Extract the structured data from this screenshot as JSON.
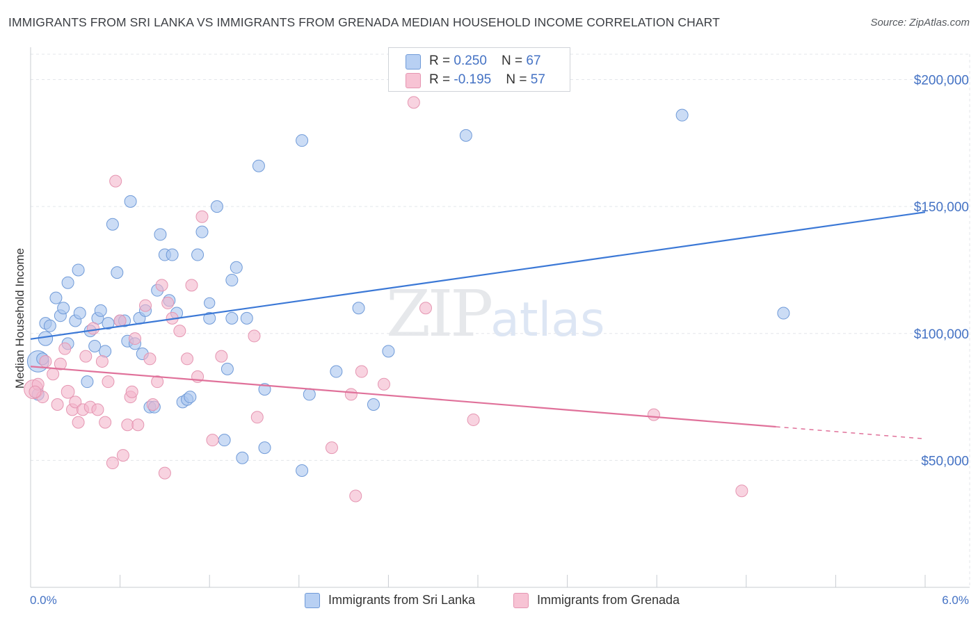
{
  "title": "IMMIGRANTS FROM SRI LANKA VS IMMIGRANTS FROM GRENADA MEDIAN HOUSEHOLD INCOME CORRELATION CHART",
  "source": "Source: ZipAtlas.com",
  "watermark": {
    "zip": "ZIP",
    "atlas": "atlas"
  },
  "colors": {
    "blue": "#4472c4",
    "blue_fill": "#a9c4ee",
    "pink": "#e0719a",
    "pink_fill": "#f4b6cb",
    "grid": "#e3e6ea"
  },
  "legend": {
    "rows": [
      {
        "r_label": "R = ",
        "r_value": "0.250",
        "n_label": "N = ",
        "n_value": "67"
      },
      {
        "r_label": "R = ",
        "r_value": "-0.195",
        "n_label": "N = ",
        "n_value": "57"
      }
    ]
  },
  "chart_data": {
    "type": "scatter",
    "title": "IMMIGRANTS FROM SRI LANKA VS IMMIGRANTS FROM GRENADA MEDIAN HOUSEHOLD INCOME CORRELATION CHART",
    "xlabel": "",
    "ylabel": "Median Household Income",
    "xlim": [
      0,
      6
    ],
    "ylim": [
      0,
      210000
    ],
    "x_tick_labels": [
      "0.0%",
      "6.0%"
    ],
    "y_ticks": [
      50000,
      100000,
      150000,
      200000
    ],
    "y_tick_labels": [
      "$50,000",
      "$100,000",
      "$150,000",
      "$200,000"
    ],
    "grid": true,
    "series": [
      {
        "name": "Immigrants from Sri Lanka",
        "color": "blue",
        "r": 0.25,
        "n": 67,
        "trend": {
          "x0": 0.0,
          "y0": 97800,
          "x1": 6.0,
          "y1": 147800,
          "dash_from": null
        },
        "points": [
          [
            0.05,
            89000,
            1.8
          ],
          [
            0.1,
            98000,
            1.2
          ],
          [
            0.1,
            104000,
            1
          ],
          [
            0.13,
            103000,
            1
          ],
          [
            0.17,
            114000,
            1
          ],
          [
            0.2,
            107000,
            1
          ],
          [
            0.22,
            110000,
            1
          ],
          [
            0.25,
            120000,
            1
          ],
          [
            0.25,
            96000,
            1
          ],
          [
            0.3,
            105000,
            1
          ],
          [
            0.32,
            125000,
            1
          ],
          [
            0.33,
            108000,
            1
          ],
          [
            0.38,
            81000,
            1
          ],
          [
            0.4,
            101000,
            1
          ],
          [
            0.43,
            95000,
            1
          ],
          [
            0.45,
            106000,
            1
          ],
          [
            0.47,
            109000,
            1
          ],
          [
            0.5,
            93000,
            1
          ],
          [
            0.52,
            104000,
            1
          ],
          [
            0.55,
            143000,
            1
          ],
          [
            0.58,
            124000,
            1
          ],
          [
            0.6,
            105000,
            1
          ],
          [
            0.63,
            105000,
            1
          ],
          [
            0.65,
            97000,
            1
          ],
          [
            0.67,
            152000,
            1
          ],
          [
            0.7,
            96000,
            1
          ],
          [
            0.73,
            106000,
            1
          ],
          [
            0.75,
            92000,
            1
          ],
          [
            0.77,
            109000,
            1
          ],
          [
            0.8,
            71000,
            1
          ],
          [
            0.83,
            71000,
            1
          ],
          [
            0.85,
            117000,
            1
          ],
          [
            0.87,
            139000,
            1
          ],
          [
            0.9,
            131000,
            1
          ],
          [
            0.93,
            113000,
            1
          ],
          [
            0.95,
            131000,
            1
          ],
          [
            0.98,
            108000,
            1
          ],
          [
            1.02,
            73000,
            1
          ],
          [
            1.05,
            74000,
            1
          ],
          [
            1.07,
            75000,
            1
          ],
          [
            1.12,
            131000,
            1
          ],
          [
            1.15,
            140000,
            1
          ],
          [
            1.2,
            106000,
            1
          ],
          [
            1.25,
            150000,
            1
          ],
          [
            1.3,
            58000,
            1
          ],
          [
            1.32,
            86000,
            1
          ],
          [
            1.35,
            121000,
            1
          ],
          [
            1.35,
            106000,
            1
          ],
          [
            1.38,
            126000,
            1
          ],
          [
            1.42,
            51000,
            1
          ],
          [
            1.45,
            106000,
            1
          ],
          [
            1.53,
            166000,
            1
          ],
          [
            1.57,
            55000,
            1
          ],
          [
            1.57,
            78000,
            1
          ],
          [
            1.82,
            176000,
            1
          ],
          [
            1.82,
            46000,
            1
          ],
          [
            1.87,
            76000,
            1
          ],
          [
            2.05,
            85000,
            1
          ],
          [
            2.2,
            110000,
            1
          ],
          [
            2.3,
            72000,
            1
          ],
          [
            2.4,
            93000,
            1
          ],
          [
            2.92,
            178000,
            1
          ],
          [
            4.37,
            186000,
            1
          ],
          [
            5.05,
            108000,
            1
          ],
          [
            0.05,
            76000,
            1
          ],
          [
            0.08,
            90000,
            1
          ],
          [
            1.2,
            112000,
            0.9
          ]
        ]
      },
      {
        "name": "Immigrants from Grenada",
        "color": "pink",
        "r": -0.195,
        "n": 57,
        "trend": {
          "x0": 0.0,
          "y0": 87000,
          "x1": 6.0,
          "y1": 58500,
          "dash_from": 5.0
        },
        "points": [
          [
            0.02,
            78000,
            1.6
          ],
          [
            0.05,
            80000,
            1
          ],
          [
            0.08,
            75000,
            1
          ],
          [
            0.1,
            89000,
            1
          ],
          [
            0.15,
            84000,
            1
          ],
          [
            0.18,
            72000,
            1
          ],
          [
            0.2,
            88000,
            1
          ],
          [
            0.23,
            94000,
            1
          ],
          [
            0.25,
            77000,
            1.1
          ],
          [
            0.28,
            70000,
            1
          ],
          [
            0.3,
            73000,
            1
          ],
          [
            0.32,
            65000,
            1
          ],
          [
            0.35,
            70000,
            1
          ],
          [
            0.37,
            91000,
            1
          ],
          [
            0.4,
            71000,
            1
          ],
          [
            0.42,
            102000,
            1
          ],
          [
            0.45,
            70000,
            1
          ],
          [
            0.48,
            89000,
            1
          ],
          [
            0.5,
            65000,
            1
          ],
          [
            0.52,
            81000,
            1
          ],
          [
            0.55,
            49000,
            1
          ],
          [
            0.57,
            160000,
            1
          ],
          [
            0.6,
            105000,
            1
          ],
          [
            0.62,
            52000,
            1
          ],
          [
            0.65,
            64000,
            1
          ],
          [
            0.67,
            75000,
            1
          ],
          [
            0.68,
            77000,
            1
          ],
          [
            0.7,
            98000,
            1
          ],
          [
            0.72,
            64000,
            1
          ],
          [
            0.77,
            111000,
            1
          ],
          [
            0.8,
            90000,
            1
          ],
          [
            0.82,
            72000,
            1
          ],
          [
            0.85,
            81000,
            1
          ],
          [
            0.88,
            119000,
            1
          ],
          [
            0.9,
            45000,
            1
          ],
          [
            0.92,
            112000,
            1
          ],
          [
            0.95,
            106000,
            1
          ],
          [
            1.0,
            101000,
            1
          ],
          [
            1.05,
            90000,
            1
          ],
          [
            1.08,
            119000,
            1
          ],
          [
            1.12,
            83000,
            1
          ],
          [
            1.15,
            146000,
            1
          ],
          [
            1.22,
            58000,
            1
          ],
          [
            1.28,
            91000,
            1
          ],
          [
            1.5,
            99000,
            1
          ],
          [
            1.52,
            67000,
            1
          ],
          [
            2.02,
            55000,
            1
          ],
          [
            2.15,
            76000,
            1
          ],
          [
            2.18,
            36000,
            1
          ],
          [
            2.22,
            85000,
            1
          ],
          [
            2.37,
            80000,
            1
          ],
          [
            2.65,
            110000,
            1
          ],
          [
            2.97,
            66000,
            1
          ],
          [
            4.18,
            68000,
            1
          ],
          [
            4.77,
            38000,
            1
          ],
          [
            2.57,
            191000,
            1
          ],
          [
            0.03,
            77000,
            1
          ]
        ]
      }
    ]
  }
}
